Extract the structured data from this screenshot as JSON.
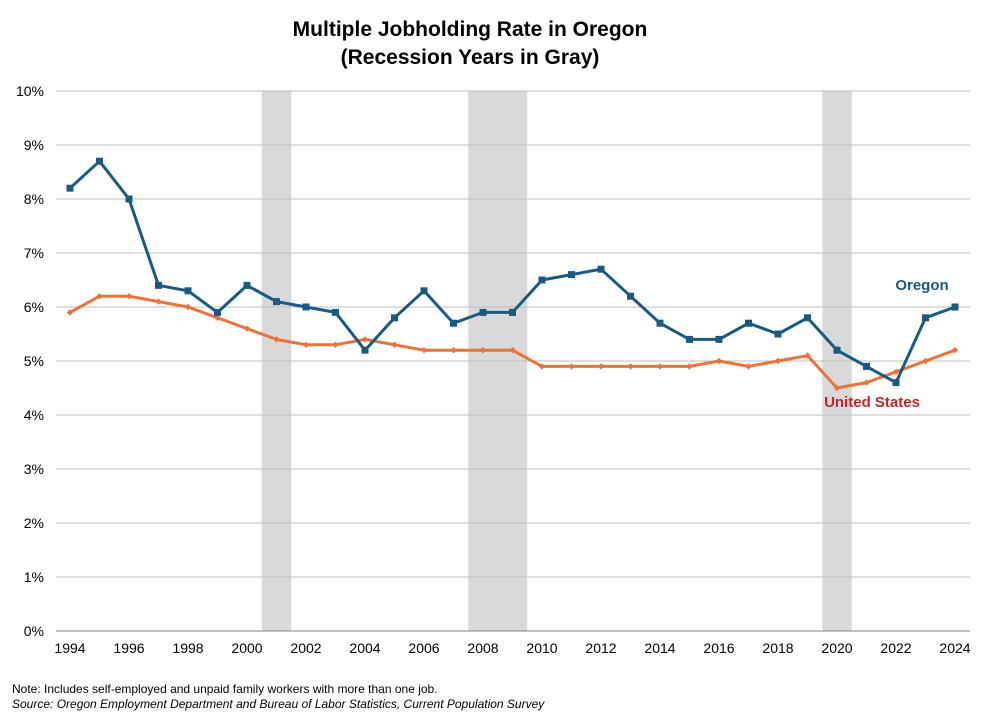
{
  "chart_data": {
    "type": "line",
    "title": "Multiple Jobholding Rate in Oregon",
    "subtitle": "(Recession Years in Gray)",
    "xlim": [
      1994,
      2024
    ],
    "ylim": [
      0,
      10
    ],
    "y_ticks": [
      0,
      1,
      2,
      3,
      4,
      5,
      6,
      7,
      8,
      9,
      10
    ],
    "y_tick_labels": [
      "0%",
      "1%",
      "2%",
      "3%",
      "4%",
      "5%",
      "6%",
      "7%",
      "8%",
      "9%",
      "10%"
    ],
    "x_ticks": [
      1994,
      1996,
      1998,
      2000,
      2002,
      2004,
      2006,
      2008,
      2010,
      2012,
      2014,
      2016,
      2018,
      2020,
      2022,
      2024
    ],
    "x_tick_labels": [
      "1994",
      "1996",
      "1998",
      "2000",
      "2002",
      "2004",
      "2006",
      "2008",
      "2010",
      "2012",
      "2014",
      "2016",
      "2018",
      "2020",
      "2022",
      "2024"
    ],
    "grid": "horizontal",
    "recession_bands": [
      {
        "start": 2000.5,
        "end": 2001.5
      },
      {
        "start": 2007.5,
        "end": 2009.5
      },
      {
        "start": 2019.5,
        "end": 2020.5
      }
    ],
    "x": [
      1994,
      1995,
      1996,
      1997,
      1998,
      1999,
      2000,
      2001,
      2002,
      2003,
      2004,
      2005,
      2006,
      2007,
      2008,
      2009,
      2010,
      2011,
      2012,
      2013,
      2014,
      2015,
      2016,
      2017,
      2018,
      2019,
      2020,
      2021,
      2022,
      2023,
      2024
    ],
    "series": [
      {
        "name": "Oregon",
        "color": "#1a5a80",
        "marker": "square",
        "values": [
          8.2,
          8.7,
          8.0,
          6.4,
          6.3,
          5.9,
          6.4,
          6.1,
          6.0,
          5.9,
          5.2,
          5.8,
          6.3,
          5.7,
          5.9,
          5.9,
          6.5,
          6.6,
          6.7,
          6.2,
          5.7,
          5.4,
          5.4,
          5.7,
          5.5,
          5.8,
          5.2,
          4.9,
          4.6,
          5.8,
          6.0
        ]
      },
      {
        "name": "United States",
        "color": "#e8743b",
        "label_color": "#c0262a",
        "marker": "diamond",
        "values": [
          5.9,
          6.2,
          6.2,
          6.1,
          6.0,
          5.8,
          5.6,
          5.4,
          5.3,
          5.3,
          5.4,
          5.3,
          5.2,
          5.2,
          5.2,
          5.2,
          4.9,
          4.9,
          4.9,
          4.9,
          4.9,
          4.9,
          5.0,
          4.9,
          5.0,
          5.1,
          4.5,
          4.6,
          4.8,
          5.0,
          5.2
        ]
      }
    ],
    "colors": {
      "recession_band": "#d9d9d9",
      "gridline": "#bfbfbf"
    }
  },
  "notes": {
    "line1": "Note: Includes self-employed and unpaid family workers with more than one job.",
    "line2": "Source: Oregon Employment Department and Bureau of Labor Statistics, Current Population Survey"
  }
}
